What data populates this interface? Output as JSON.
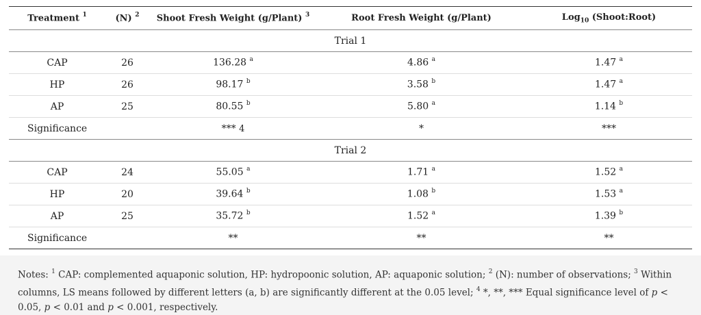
{
  "header": {
    "treatment": "Treatment",
    "treatment_sup": "1",
    "n": "(N)",
    "n_sup": "2",
    "shoot": "Shoot Fresh Weight (g/Plant)",
    "shoot_sup": "3",
    "root": "Root Fresh Weight (g/Plant)",
    "log_prefix": "Log",
    "log_sub": "10",
    "log_rest": " (Shoot:Root)"
  },
  "trial1": {
    "label": "Trial 1",
    "rows": [
      {
        "treatment": "CAP",
        "n": "26",
        "shoot": "136.28",
        "shoot_l": "a",
        "root": "4.86",
        "root_l": "a",
        "log": "1.47",
        "log_l": "a"
      },
      {
        "treatment": "HP",
        "n": "26",
        "shoot": "98.17",
        "shoot_l": "b",
        "root": "3.58",
        "root_l": "b",
        "log": "1.47",
        "log_l": "a"
      },
      {
        "treatment": "AP",
        "n": "25",
        "shoot": "80.55",
        "shoot_l": "b",
        "root": "5.80",
        "root_l": "a",
        "log": "1.14",
        "log_l": "b"
      }
    ],
    "significance": {
      "label": "Significance",
      "shoot": "***",
      "shoot_sup": "4",
      "root": "*",
      "log": "***"
    }
  },
  "trial2": {
    "label": "Trial 2",
    "rows": [
      {
        "treatment": "CAP",
        "n": "24",
        "shoot": "55.05",
        "shoot_l": "a",
        "root": "1.71",
        "root_l": "a",
        "log": "1.52",
        "log_l": "a"
      },
      {
        "treatment": "HP",
        "n": "20",
        "shoot": "39.64",
        "shoot_l": "b",
        "root": "1.08",
        "root_l": "b",
        "log": "1.53",
        "log_l": "a"
      },
      {
        "treatment": "AP",
        "n": "25",
        "shoot": "35.72",
        "shoot_l": "b",
        "root": "1.52",
        "root_l": "a",
        "log": "1.39",
        "log_l": "b"
      }
    ],
    "significance": {
      "label": "Significance",
      "shoot": "**",
      "root": "**",
      "log": "**"
    }
  },
  "notes": {
    "prefix": "Notes: ",
    "s1": "1",
    "t1": " CAP: complemented aquaponic solution, HP: hydropoonic solution, AP: aquaponic solution; ",
    "s2": "2",
    "t2": " (N): number of observations; ",
    "s3": "3",
    "t3": " Within columns, LS means followed by different letters (a, b) are significantly different at the 0.05 level; ",
    "s4": "4",
    "t4": " *, **, *** Equal significance level of ",
    "p1": "p",
    "t5": " < 0.05, ",
    "p2": "p",
    "t6": " < 0.01 and ",
    "p3": "p",
    "t7": " < 0.001, respectively."
  }
}
